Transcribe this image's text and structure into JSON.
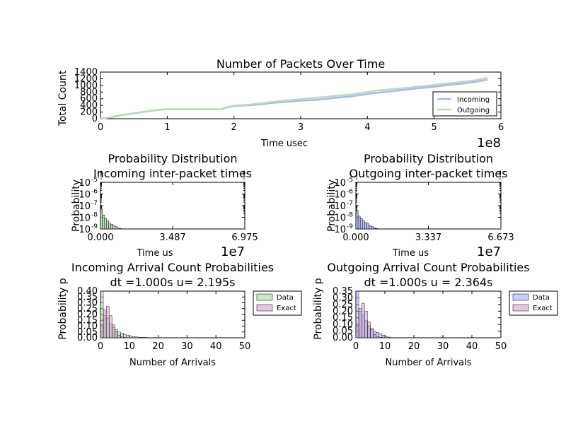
{
  "colors": {
    "incoming": "#aab4ff",
    "outgoing": "#b7deb0",
    "data_green": "#9fd39a",
    "data_blue": "#9ea6f2",
    "exact": "#cc99cc",
    "axis": "#000000"
  },
  "chart_data": [
    {
      "type": "line",
      "title": "Number of Packets Over Time",
      "xlabel": "Time usec",
      "ylabel": "Total Count",
      "x_offset_label": "1e8",
      "xlim": [
        0,
        6
      ],
      "ylim": [
        0,
        1400
      ],
      "x_ticks": [
        "0",
        "1",
        "2",
        "3",
        "4",
        "5",
        "6"
      ],
      "y_ticks": [
        "0",
        "200",
        "400",
        "600",
        "800",
        "1000",
        "1200",
        "1400"
      ],
      "legend": "lower-right",
      "series": [
        {
          "name": "Incoming",
          "x": [
            0,
            0.15,
            0.3,
            0.5,
            0.7,
            0.9,
            1.0,
            1.2,
            1.5,
            1.8,
            1.9,
            2.0,
            2.2,
            2.4,
            2.6,
            2.8,
            3.0,
            3.2,
            3.4,
            3.6,
            3.8,
            4.0,
            4.2,
            4.4,
            4.6,
            4.8,
            5.0,
            5.2,
            5.4,
            5.6,
            5.8
          ],
          "y": [
            0,
            40,
            100,
            160,
            220,
            270,
            280,
            280,
            280,
            280,
            340,
            380,
            400,
            430,
            480,
            510,
            540,
            560,
            600,
            640,
            680,
            740,
            790,
            830,
            880,
            920,
            960,
            1010,
            1050,
            1100,
            1170
          ]
        },
        {
          "name": "Outgoing",
          "x": [
            0,
            0.15,
            0.3,
            0.5,
            0.7,
            0.9,
            1.0,
            1.2,
            1.5,
            1.8,
            1.9,
            2.0,
            2.2,
            2.4,
            2.6,
            2.8,
            3.0,
            3.2,
            3.4,
            3.6,
            3.8,
            4.0,
            4.2,
            4.4,
            4.6,
            4.8,
            5.0,
            5.2,
            5.4,
            5.6,
            5.8
          ],
          "y": [
            0,
            45,
            105,
            165,
            225,
            275,
            285,
            285,
            285,
            285,
            350,
            395,
            415,
            460,
            510,
            550,
            590,
            620,
            660,
            700,
            740,
            800,
            860,
            890,
            930,
            970,
            1010,
            1060,
            1100,
            1150,
            1230
          ]
        }
      ]
    },
    {
      "type": "bar",
      "title": "Probability Distribution\nIncoming inter-packet times",
      "title_lines": [
        "Probability Distribution",
        "Incoming inter-packet times"
      ],
      "xlabel": "Time us",
      "ylabel": "Probability",
      "x_offset_label": "1e7",
      "x_ticks": [
        "0.000",
        "3.487",
        "6.975"
      ],
      "xlim": [
        0,
        6.975
      ],
      "y_ticks": [
        "10",
        "10",
        "10",
        "10",
        "10"
      ],
      "y_tick_exponents": [
        "-5",
        "-6",
        "-7",
        "-8",
        "-9"
      ],
      "y_log_range": [
        -9,
        -5
      ],
      "series": [
        {
          "name": "",
          "color_key": "data_green",
          "x": [
            0.05,
            0.15,
            0.25,
            0.35,
            0.45,
            0.55,
            0.65,
            0.75,
            0.85,
            0.95,
            1.2
          ],
          "log_y": [
            -7.3,
            -7.8,
            -8.1,
            -8.3,
            -8.5,
            -8.6,
            -8.7,
            -8.8,
            -8.9,
            -8.95,
            -9.0
          ]
        }
      ]
    },
    {
      "type": "bar",
      "title": "Probability Distribution\nOutgoing inter-packet times",
      "title_lines": [
        "Probability Distribution",
        "Outgoing inter-packet times"
      ],
      "xlabel": "Time us",
      "ylabel": "Probability",
      "x_offset_label": "1e7",
      "x_ticks": [
        "0.000",
        "3.337",
        "6.673"
      ],
      "xlim": [
        0,
        6.673
      ],
      "y_ticks": [
        "10",
        "10",
        "10",
        "10",
        "10"
      ],
      "y_tick_exponents": [
        "-5",
        "-6",
        "-7",
        "-8",
        "-9"
      ],
      "y_log_range": [
        -9,
        -5
      ],
      "series": [
        {
          "name": "",
          "color_key": "data_blue",
          "x": [
            0.05,
            0.15,
            0.25,
            0.35,
            0.45,
            0.55,
            0.65,
            0.75,
            0.85,
            0.95,
            1.1
          ],
          "log_y": [
            -7.4,
            -7.9,
            -8.1,
            -8.3,
            -8.45,
            -8.55,
            -8.7,
            -8.8,
            -8.9,
            -8.95,
            -9.0
          ]
        }
      ]
    },
    {
      "type": "bar",
      "title": "Incoming Arrival Count Probabilities\ndt =1.000s u= 2.195s",
      "title_lines": [
        "Incoming Arrival Count Probabilities",
        "dt =1.000s u= 2.195s"
      ],
      "xlabel": "Number of Arrivals",
      "ylabel": "Probability p",
      "xlim": [
        0,
        50
      ],
      "ylim": [
        0,
        0.4
      ],
      "x_ticks": [
        "0",
        "10",
        "20",
        "30",
        "40",
        "50"
      ],
      "y_ticks": [
        "0.00",
        "0.05",
        "0.10",
        "0.15",
        "0.20",
        "0.25",
        "0.30",
        "0.35",
        "0.40"
      ],
      "legend": "outside-right",
      "series": [
        {
          "name": "Data",
          "color_key": "data_green",
          "x": [
            0,
            1,
            2,
            3,
            4,
            5,
            6,
            7,
            8,
            9,
            10,
            11,
            12,
            13,
            14,
            15
          ],
          "values": [
            0.4,
            0.19,
            0.17,
            0.12,
            0.09,
            0.07,
            0.05,
            0.04,
            0.03,
            0.02,
            0.015,
            0.01,
            0.008,
            0.005,
            0.005,
            0.004
          ]
        },
        {
          "name": "Exact",
          "color_key": "exact",
          "x": [
            0,
            1,
            2,
            3,
            4,
            5,
            6,
            7,
            8,
            9
          ],
          "values": [
            0.11,
            0.24,
            0.27,
            0.19,
            0.11,
            0.05,
            0.02,
            0.007,
            0.002,
            0.001
          ]
        }
      ]
    },
    {
      "type": "bar",
      "title": "Outgoing Arrival Count Probabilities\ndt =1.000s u = 2.364s",
      "title_lines": [
        "Outgoing Arrival Count Probabilities",
        "dt =1.000s u = 2.364s"
      ],
      "xlabel": "Number of Arrivals",
      "ylabel": "Probability p",
      "xlim": [
        0,
        50
      ],
      "ylim": [
        0,
        0.35
      ],
      "x_ticks": [
        "0",
        "10",
        "20",
        "30",
        "40",
        "50"
      ],
      "y_ticks": [
        "0.00",
        "0.05",
        "0.10",
        "0.15",
        "0.20",
        "0.25",
        "0.30",
        "0.35"
      ],
      "legend": "outside-right",
      "series": [
        {
          "name": "Data",
          "color_key": "data_blue",
          "x": [
            0,
            1,
            2,
            3,
            4,
            5,
            6,
            7,
            8,
            9,
            10,
            11
          ],
          "values": [
            0.35,
            0.2,
            0.17,
            0.13,
            0.09,
            0.07,
            0.05,
            0.04,
            0.03,
            0.02,
            0.01,
            0.005
          ]
        },
        {
          "name": "Exact",
          "color_key": "exact",
          "x": [
            0,
            1,
            2,
            3,
            4,
            5,
            6,
            7,
            8,
            9
          ],
          "values": [
            0.09,
            0.22,
            0.26,
            0.2,
            0.12,
            0.06,
            0.024,
            0.008,
            0.002,
            0.001
          ]
        }
      ]
    }
  ]
}
